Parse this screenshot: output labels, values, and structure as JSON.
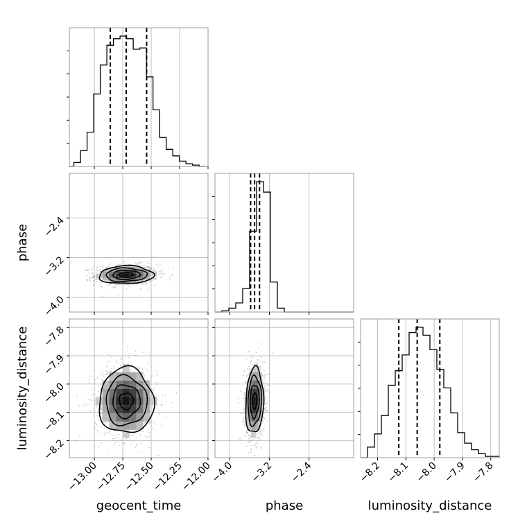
{
  "chart_data": {
    "type": "corner",
    "parameters": [
      "geocent_time",
      "phase",
      "luminosity_distance"
    ],
    "ranges": {
      "geocent_time": [
        -13.22,
        -12.0
      ],
      "phase": [
        -4.3,
        -1.5
      ],
      "luminosity_distance": [
        -8.26,
        -7.77
      ]
    },
    "ticks": {
      "geocent_time": {
        "values": [
          -13.0,
          -12.75,
          -12.5,
          -12.25,
          -12.0
        ],
        "labels": [
          "−13.00",
          "−12.75",
          "−12.50",
          "−12.25",
          "−12.00"
        ]
      },
      "phase": {
        "values": [
          -4.0,
          -3.2,
          -2.4
        ],
        "labels": [
          "−4.0",
          "−3.2",
          "−2.4"
        ]
      },
      "luminosity_distance": {
        "values": [
          -8.2,
          -8.1,
          -8.0,
          -7.9,
          -7.8
        ],
        "labels": [
          "−8.2",
          "−8.1",
          "−8.0",
          "−7.9",
          "−7.8"
        ]
      }
    },
    "quantiles": {
      "geocent_time": [
        -12.86,
        -12.72,
        -12.54
      ],
      "phase": [
        -3.58,
        -3.5,
        -3.4
      ],
      "luminosity_distance": [
        -8.125,
        -8.06,
        -7.98
      ]
    },
    "histograms": {
      "geocent_time": {
        "edges_range": [
          -13.18,
          -12.02
        ],
        "bins": 20,
        "counts": [
          0.03,
          0.12,
          0.26,
          0.55,
          0.77,
          0.92,
          0.97,
          0.99,
          0.97,
          0.89,
          0.9,
          0.68,
          0.43,
          0.22,
          0.13,
          0.08,
          0.04,
          0.02,
          0.01,
          0.0
        ]
      },
      "phase": {
        "edges_range": [
          -4.3,
          -1.5
        ],
        "bins": 20,
        "counts": [
          0.0,
          0.01,
          0.03,
          0.07,
          0.18,
          0.62,
          1.0,
          0.92,
          0.23,
          0.03,
          0.0,
          0.0,
          0.0,
          0.0,
          0.0,
          0.0,
          0.0,
          0.0,
          0.0,
          0.0
        ]
      },
      "luminosity_distance": {
        "edges_range": [
          -8.26,
          -7.77
        ],
        "bins": 20,
        "counts": [
          0.0,
          0.08,
          0.18,
          0.32,
          0.55,
          0.66,
          0.78,
          0.95,
          0.99,
          0.93,
          0.82,
          0.67,
          0.53,
          0.34,
          0.19,
          0.11,
          0.06,
          0.03,
          0.01,
          0.01
        ]
      }
    },
    "joint": {
      "phase_vs_geocent_time": {
        "x": "geocent_time",
        "y": "phase",
        "mean": [
          -12.72,
          -3.55
        ],
        "sigma": [
          0.12,
          0.09
        ],
        "rho": 0.05
      },
      "luminosity_distance_vs_geocent_time": {
        "x": "geocent_time",
        "y": "luminosity_distance",
        "mean": [
          -12.72,
          -8.06
        ],
        "sigma": [
          0.12,
          0.058
        ],
        "rho": 0.0
      },
      "luminosity_distance_vs_phase": {
        "x": "phase",
        "y": "luminosity_distance",
        "mean": [
          -3.5,
          -8.06
        ],
        "sigma": [
          0.09,
          0.058
        ],
        "rho": 0.1
      }
    },
    "grid": true,
    "colors": {
      "line": "#000000",
      "points": "#888888",
      "grid": "#b0b0b0",
      "frame": "#999999"
    }
  }
}
